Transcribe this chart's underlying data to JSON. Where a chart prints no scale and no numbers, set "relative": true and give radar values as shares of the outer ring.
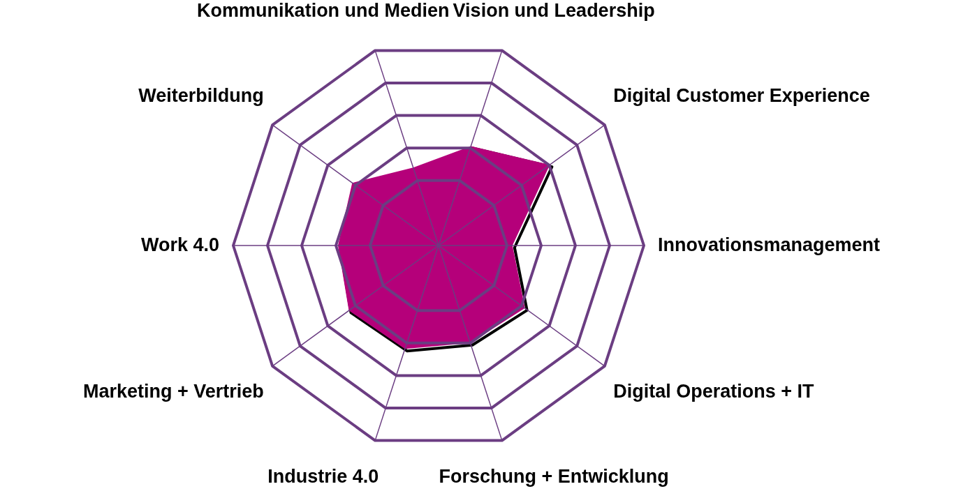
{
  "chart_data": {
    "type": "radar",
    "relative": true,
    "grid": true,
    "categories": [
      "Vision und Leadership",
      "Digital Customer Experience",
      "Innovationsmanagement",
      "Digital Operations + IT",
      "Forschung + Entwicklung",
      "Industrie 4.0",
      "Marketing + Vertrieb",
      "Work 4.0",
      "Weiterbildung",
      "Kommunikation und Medien"
    ],
    "series": [
      {
        "color": "#b5007a",
        "values": [
          0.51,
          0.67,
          0.36,
          0.52,
          0.5,
          0.53,
          0.54,
          0.49,
          0.52,
          0.4
        ]
      }
    ]
  }
}
